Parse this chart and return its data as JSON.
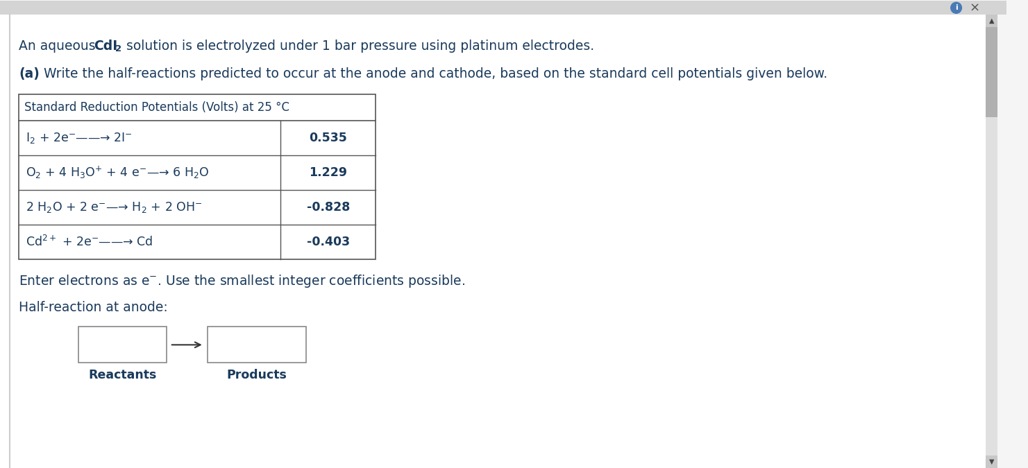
{
  "bg_color": "#f5f5f5",
  "content_bg": "#ffffff",
  "text_color": "#1a3a5c",
  "table_border_color": "#555555",
  "table_header": "Standard Reduction Potentials (Volts) at 25 °C",
  "row_reactions_latex": [
    "I$_2$ + 2e$^{-}$——→ 2I$^{-}$",
    "O$_2$ + 4 H$_3$O$^{+}$ + 4 e$^{-}$—→ 6 H$_2$O",
    "2 H$_2$O + 2 e$^{-}$—→ H$_2$ + 2 OH$^{-}$",
    "Cd$^{2+}$ + 2e$^{-}$——→ Cd"
  ],
  "row_potentials": [
    "0.535",
    "1.229",
    "-0.828",
    "-0.403"
  ],
  "enter_text": "Enter electrons as e$^{-}$. Use the smallest integer coefficients possible.",
  "half_reaction_label": "Half-reaction at anode:",
  "reactants_label": "Reactants",
  "products_label": "Products",
  "scrollbar_bg": "#e0e0e0",
  "scrollbar_thumb": "#b0b0b0",
  "topbar_color": "#d4d4d4"
}
